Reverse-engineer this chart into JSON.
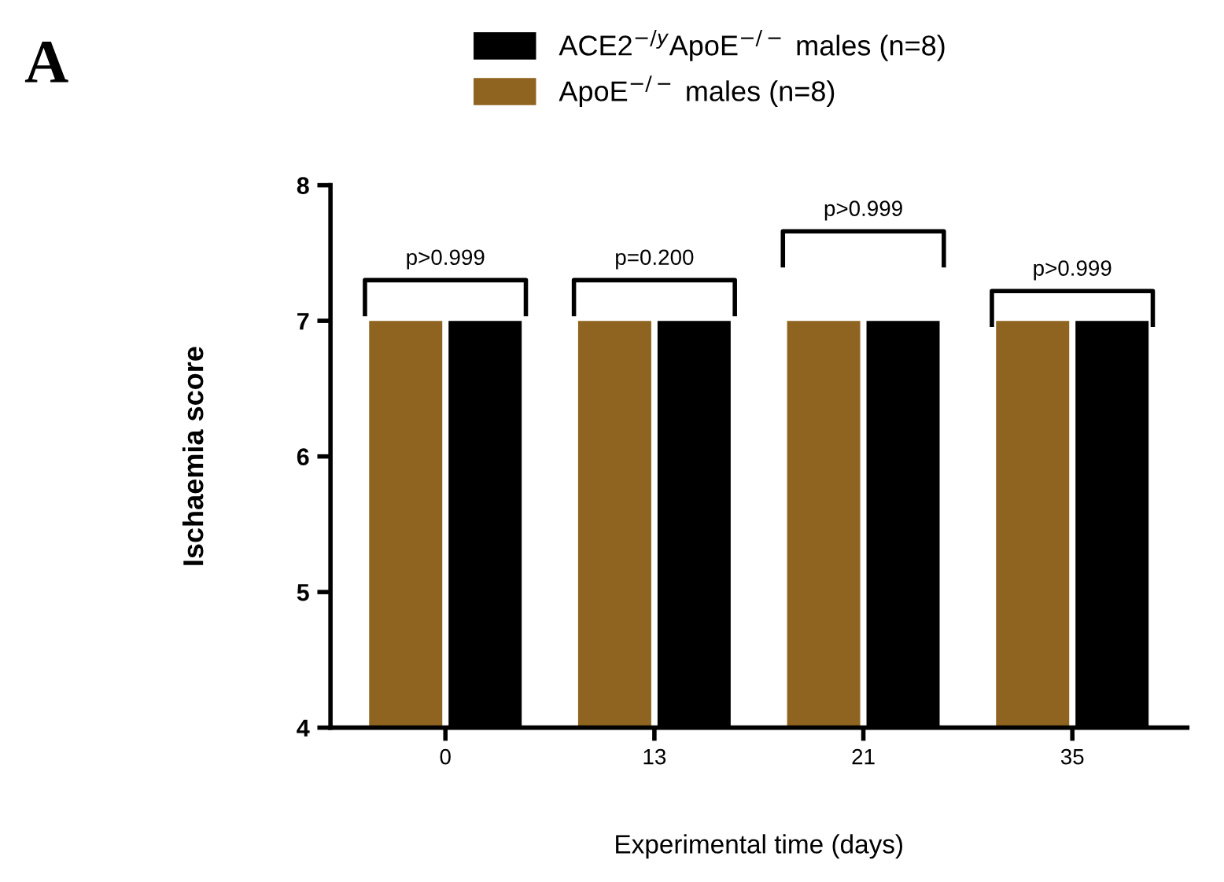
{
  "chart_data": {
    "type": "bar",
    "title": "A",
    "xlabel": "Experimental time (days)",
    "ylabel": "Ischaemia score",
    "categories": [
      "0",
      "13",
      "21",
      "35"
    ],
    "series": [
      {
        "name": "ApoE$^{−/−}$ males (n=8)",
        "color": "#8f6420",
        "values": [
          7,
          7,
          7,
          7
        ]
      },
      {
        "name": "ACE2$^{−/y}$ApoE$^{−/−}$ males (n=8)",
        "color": "#000000",
        "values": [
          7,
          7,
          7,
          7
        ]
      }
    ],
    "ylim": [
      4,
      8
    ],
    "yticks": [
      4,
      5,
      6,
      7,
      8
    ],
    "legend": "top",
    "grid": false,
    "annotations": [
      "p>0.999",
      "p=0.200",
      "p>0.999",
      "p>0.999"
    ]
  }
}
